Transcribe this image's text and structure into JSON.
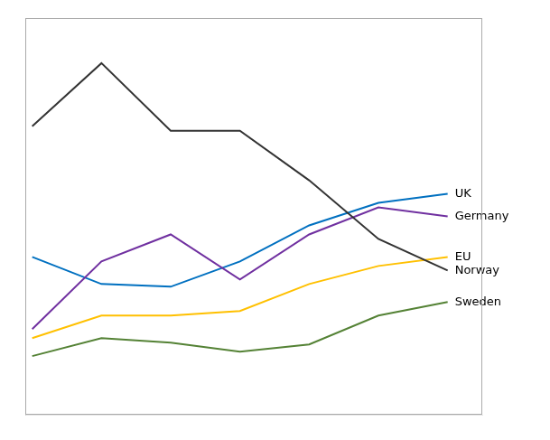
{
  "chart_data": {
    "type": "line",
    "x": [
      0,
      1,
      2,
      3,
      4,
      5,
      6
    ],
    "series": [
      {
        "name": "Norway",
        "color": "#333333",
        "values": [
          3.6,
          4.3,
          3.55,
          3.55,
          3.0,
          2.35,
          2.0
        ]
      },
      {
        "name": "Germany",
        "color": "#7030A0",
        "values": [
          1.35,
          2.1,
          2.4,
          1.9,
          2.4,
          2.7,
          2.6
        ]
      },
      {
        "name": "UK",
        "color": "#0070C0",
        "values": [
          2.15,
          1.85,
          1.82,
          2.1,
          2.5,
          2.75,
          2.85
        ]
      },
      {
        "name": "EU",
        "color": "#FFC000",
        "values": [
          1.25,
          1.5,
          1.5,
          1.55,
          1.85,
          2.05,
          2.15
        ]
      },
      {
        "name": "Sweden",
        "color": "#548235",
        "values": [
          1.05,
          1.25,
          1.2,
          1.1,
          1.18,
          1.5,
          1.65
        ]
      }
    ],
    "xlim": [
      -0.1,
      6.5
    ],
    "ylim": [
      0.4,
      4.8
    ],
    "tick_labels": false,
    "grid": false
  }
}
